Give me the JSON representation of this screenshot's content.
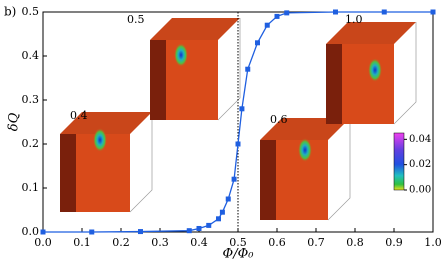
{
  "chart_data": {
    "type": "line",
    "panel_label": "b)",
    "x_label": "Φ/Φ₀",
    "y_label": "δQ",
    "x": [
      0,
      0.125,
      0.25,
      0.375,
      0.4,
      0.425,
      0.45,
      0.46,
      0.475,
      0.49,
      0.5,
      0.51,
      0.525,
      0.55,
      0.575,
      0.6,
      0.625,
      0.75,
      0.875,
      1.0
    ],
    "series": [
      {
        "color": "#1f5fe0",
        "values": [
          0,
          0,
          0.001,
          0.003,
          0.008,
          0.015,
          0.03,
          0.045,
          0.075,
          0.12,
          0.2,
          0.28,
          0.37,
          0.43,
          0.47,
          0.49,
          0.498,
          0.5,
          0.5,
          0.5
        ]
      }
    ],
    "xlim": [
      0,
      1.0
    ],
    "ylim": [
      0,
      0.5
    ],
    "xticks": [
      {
        "value": 0,
        "label": "0.0"
      },
      0.1,
      0.2,
      0.3,
      0.4,
      0.5,
      0.6,
      0.7,
      0.8,
      0.9,
      {
        "value": 1,
        "label": "1.0"
      }
    ],
    "yticks": [
      {
        "value": 0,
        "label": "0.0"
      },
      0.1,
      0.2,
      0.3,
      0.4,
      0.5
    ],
    "insets": [
      {
        "label": "0.4"
      },
      {
        "label": "0.5"
      },
      {
        "label": "0.6"
      },
      {
        "label": "1.0"
      }
    ],
    "colorbar": {
      "ticks": [
        {
          "value": 0,
          "label": "0.00"
        },
        {
          "value": 0.02,
          "label": "0.02"
        },
        {
          "value": 0.04,
          "label": "0.04"
        }
      ],
      "lim": [
        0,
        0.045
      ]
    }
  }
}
